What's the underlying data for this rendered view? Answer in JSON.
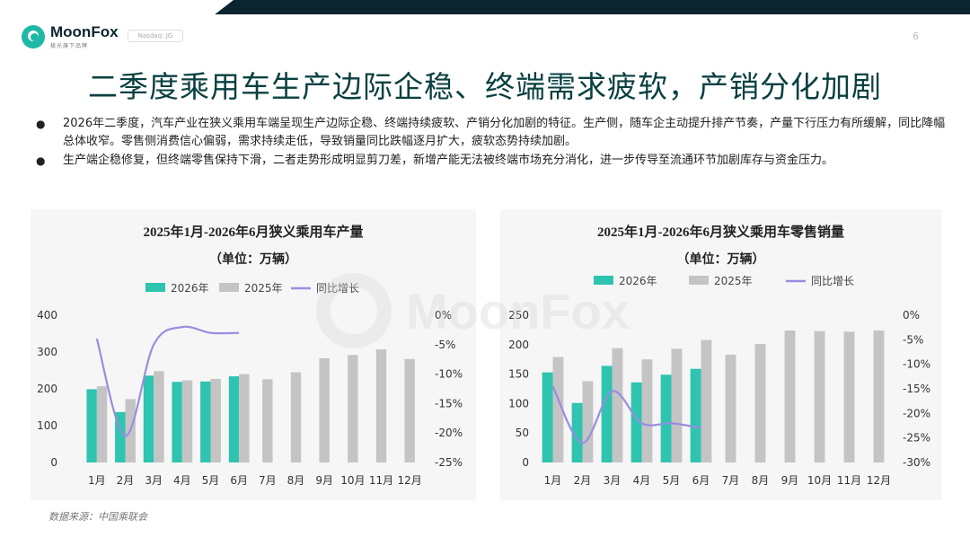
{
  "header": {
    "brand": "MoonFox",
    "brand_sub": "极光旗下品牌",
    "badge": "Nasdaq: JG",
    "page_number": "6"
  },
  "title": "二季度乘用车生产边际企稳、终端需求疲软，产销分化加剧",
  "bullets": [
    "2026年二季度，汽车产业在狭义乘用车端呈现生产边际企稳、终端持续疲软、产销分化加剧的特征。生产侧，随车企主动提升排产节奏，产量下行压力有所缓解，同比降幅总体收窄。零售侧消费信心偏弱，需求持续走低，导致销量同比跌幅逐月扩大，疲软态势持续加剧。",
    "生产端企稳修复，但终端零售保持下滑，二者走势形成明显剪刀差，新增产能无法被终端市场充分消化，进一步传导至流通环节加剧库存与资金压力。"
  ],
  "source": "数据来源：中国乘联会",
  "watermark": "MoonFox",
  "colors": {
    "series_2026": "#2ec4b0",
    "series_2025": "#c4c4c4",
    "yoy": "#9b8ce0",
    "title": "#0a4040"
  },
  "chart_data": [
    {
      "type": "bar",
      "title": "2025年1月-2026年6月狭义乘用车产量",
      "subtitle": "（单位：万辆）",
      "categories": [
        "1月",
        "2月",
        "3月",
        "4月",
        "5月",
        "6月",
        "7月",
        "8月",
        "9月",
        "10月",
        "11月",
        "12月"
      ],
      "series": [
        {
          "name": "2026年",
          "values": [
            199,
            137,
            236,
            219,
            220,
            234,
            null,
            null,
            null,
            null,
            null,
            null
          ]
        },
        {
          "name": "2025年",
          "values": [
            207,
            172,
            248,
            223,
            227,
            240,
            226,
            245,
            283,
            292,
            307,
            281
          ]
        },
        {
          "name": "同比增长",
          "kind": "line",
          "axis": "right",
          "values": [
            -4,
            -20.5,
            -5,
            -2,
            -3,
            -3,
            null,
            null,
            null,
            null,
            null,
            null
          ]
        }
      ],
      "y_left": {
        "ticks": [
          "0",
          "100",
          "200",
          "300",
          "400"
        ],
        "min": 0,
        "max": 400
      },
      "y_right": {
        "ticks": [
          "0%",
          "-5%",
          "-10%",
          "-15%",
          "-20%",
          "-25%"
        ],
        "min": -25,
        "max": 0
      },
      "legend": "top-center",
      "grid": false
    },
    {
      "type": "bar",
      "title": "2025年1月-2026年6月狭义乘用车零售销量",
      "subtitle": "（单位：万辆）",
      "categories": [
        "1月",
        "2月",
        "3月",
        "4月",
        "5月",
        "6月",
        "7月",
        "8月",
        "9月",
        "10月",
        "11月",
        "12月"
      ],
      "series": [
        {
          "name": "2026年",
          "values": [
            153,
            101,
            164,
            136,
            149,
            159,
            null,
            null,
            null,
            null,
            null,
            null
          ]
        },
        {
          "name": "2025年",
          "values": [
            179,
            138,
            194,
            175,
            193,
            208,
            183,
            201,
            224,
            223,
            222,
            224
          ]
        },
        {
          "name": "同比增长",
          "kind": "line",
          "axis": "right",
          "values": [
            -14.5,
            -26,
            -15.5,
            -22,
            -22,
            -23,
            null,
            null,
            null,
            null,
            null,
            null
          ]
        }
      ],
      "y_left": {
        "ticks": [
          "0",
          "50",
          "100",
          "150",
          "200",
          "250"
        ],
        "min": 0,
        "max": 250
      },
      "y_right": {
        "ticks": [
          "0%",
          "-5%",
          "-10%",
          "-15%",
          "-20%",
          "-25%",
          "-30%"
        ],
        "min": -30,
        "max": 0
      },
      "legend": "top-center",
      "grid": false
    }
  ]
}
